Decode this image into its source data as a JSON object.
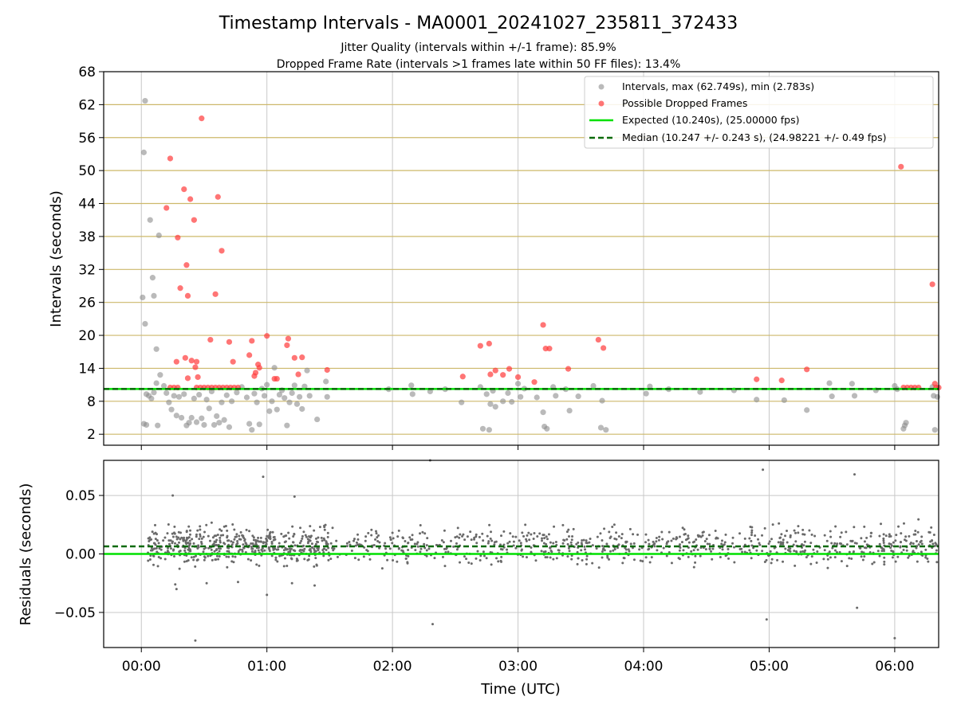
{
  "title": "Timestamp Intervals - MA0001_20241027_235811_372433",
  "subtitle_1": "Jitter Quality (intervals within +/-1 frame): 85.9%",
  "subtitle_2": "Dropped Frame Rate (intervals >1 frames late within 50 FF files): 13.4%",
  "colors": {
    "intervals": "#8c8c8c",
    "dropped": "#ff3b3b",
    "expected": "#00e000",
    "median": "#0a6a0a",
    "hgrid_top": "#cdb86a",
    "grid": "#c8c8c8",
    "residual_points": "#6a6a6a"
  },
  "chart_data": [
    {
      "type": "scatter",
      "panel": "intervals",
      "xlabel": "",
      "ylabel": "Intervals (seconds)",
      "xlim": [
        -0.3,
        6.35
      ],
      "ylim": [
        0,
        68
      ],
      "y_ticks": [
        "2",
        "8",
        "14",
        "20",
        "26",
        "32",
        "38",
        "44",
        "50",
        "56",
        "62",
        "68"
      ],
      "y_tick_values": [
        2,
        8,
        14,
        20,
        26,
        32,
        38,
        44,
        50,
        56,
        62,
        68
      ],
      "x_tick_values": [
        0,
        1,
        2,
        3,
        4,
        5,
        6
      ],
      "legend_position": "top-right",
      "legend": {
        "intervals": "Intervals, max (62.749s), min (2.783s)",
        "dropped": "Possible Dropped Frames",
        "expected": "Expected (10.240s), (25.00000 fps)",
        "median": "Median (10.247 +/- 0.243 s), (24.98221 +/- 0.49 fps)"
      },
      "expected_value": 10.24,
      "median_value": 10.247,
      "series": [
        {
          "name": "Intervals, max (62.749s), min (2.783s)",
          "points": [
            [
              0.02,
              53.3
            ],
            [
              0.03,
              62.7
            ],
            [
              0.07,
              41
            ],
            [
              0.09,
              30.5
            ],
            [
              0.1,
              27.2
            ],
            [
              0.14,
              38.2
            ],
            [
              0.01,
              26.9
            ],
            [
              0.03,
              22.1
            ],
            [
              0.12,
              17.5
            ],
            [
              0.02,
              3.9
            ],
            [
              0.04,
              3.7
            ],
            [
              0.13,
              3.6
            ],
            [
              0.04,
              9.3
            ],
            [
              0.06,
              9.0
            ],
            [
              0.08,
              8.5
            ],
            [
              0.1,
              9.6
            ],
            [
              0.12,
              11.3
            ],
            [
              0.15,
              12.8
            ],
            [
              0.18,
              10.8
            ],
            [
              0.2,
              9.5
            ],
            [
              0.22,
              7.8
            ],
            [
              0.24,
              6.5
            ],
            [
              0.26,
              9.0
            ],
            [
              0.28,
              5.4
            ],
            [
              0.3,
              8.8
            ],
            [
              0.32,
              5.0
            ],
            [
              0.34,
              9.3
            ],
            [
              0.36,
              3.6
            ],
            [
              0.38,
              4.1
            ],
            [
              0.4,
              5.0
            ],
            [
              0.42,
              8.5
            ],
            [
              0.44,
              4.2
            ],
            [
              0.46,
              9.2
            ],
            [
              0.48,
              4.9
            ],
            [
              0.5,
              3.7
            ],
            [
              0.52,
              8.3
            ],
            [
              0.54,
              6.7
            ],
            [
              0.56,
              9.8
            ],
            [
              0.58,
              3.7
            ],
            [
              0.6,
              5.3
            ],
            [
              0.62,
              4.1
            ],
            [
              0.64,
              7.8
            ],
            [
              0.66,
              4.6
            ],
            [
              0.68,
              9.1
            ],
            [
              0.7,
              3.3
            ],
            [
              0.72,
              8.0
            ],
            [
              0.76,
              9.6
            ],
            [
              0.8,
              10.6
            ],
            [
              0.84,
              8.7
            ],
            [
              0.86,
              3.9
            ],
            [
              0.88,
              2.8
            ],
            [
              0.9,
              9.4
            ],
            [
              0.92,
              7.8
            ],
            [
              0.94,
              3.8
            ],
            [
              0.96,
              10.3
            ],
            [
              0.98,
              9.0
            ],
            [
              1.0,
              11.0
            ],
            [
              1.02,
              6.2
            ],
            [
              1.04,
              8.0
            ],
            [
              1.06,
              14.1
            ],
            [
              1.08,
              6.5
            ],
            [
              1.1,
              9.2
            ],
            [
              1.12,
              10.0
            ],
            [
              1.14,
              8.6
            ],
            [
              1.16,
              3.6
            ],
            [
              1.18,
              7.8
            ],
            [
              1.2,
              9.5
            ],
            [
              1.22,
              10.9
            ],
            [
              1.24,
              7.5
            ],
            [
              1.26,
              8.8
            ],
            [
              1.28,
              6.6
            ],
            [
              1.3,
              10.7
            ],
            [
              1.32,
              13.6
            ],
            [
              1.34,
              9.0
            ],
            [
              1.4,
              4.7
            ],
            [
              1.47,
              11.6
            ],
            [
              1.48,
              8.8
            ],
            [
              1.97,
              10.2
            ],
            [
              2.15,
              10.9
            ],
            [
              2.16,
              9.3
            ],
            [
              2.3,
              9.8
            ],
            [
              2.42,
              10.2
            ],
            [
              2.55,
              7.8
            ],
            [
              2.7,
              10.6
            ],
            [
              2.72,
              3.0
            ],
            [
              2.75,
              9.3
            ],
            [
              2.77,
              2.8
            ],
            [
              2.78,
              7.5
            ],
            [
              2.8,
              9.9
            ],
            [
              2.82,
              7.0
            ],
            [
              2.88,
              8.0
            ],
            [
              2.92,
              9.5
            ],
            [
              2.95,
              7.9
            ],
            [
              3.0,
              11.2
            ],
            [
              3.02,
              8.8
            ],
            [
              3.05,
              10.3
            ],
            [
              3.15,
              8.7
            ],
            [
              3.2,
              6.0
            ],
            [
              3.21,
              3.4
            ],
            [
              3.23,
              3.0
            ],
            [
              3.28,
              10.6
            ],
            [
              3.3,
              9.0
            ],
            [
              3.38,
              10.2
            ],
            [
              3.41,
              6.3
            ],
            [
              3.48,
              8.9
            ],
            [
              3.6,
              10.8
            ],
            [
              3.66,
              3.2
            ],
            [
              3.67,
              8.1
            ],
            [
              3.7,
              2.8
            ],
            [
              4.02,
              9.4
            ],
            [
              4.05,
              10.7
            ],
            [
              4.2,
              10.2
            ],
            [
              4.45,
              9.7
            ],
            [
              4.72,
              10.0
            ],
            [
              4.9,
              8.3
            ],
            [
              5.12,
              8.2
            ],
            [
              5.3,
              6.4
            ],
            [
              5.48,
              11.3
            ],
            [
              5.5,
              8.9
            ],
            [
              5.66,
              11.2
            ],
            [
              5.68,
              9.0
            ],
            [
              5.85,
              10.0
            ],
            [
              6.0,
              10.8
            ],
            [
              6.02,
              10.2
            ],
            [
              6.07,
              3.0
            ],
            [
              6.08,
              3.6
            ],
            [
              6.09,
              4.1
            ],
            [
              6.3,
              10.6
            ],
            [
              6.31,
              9.0
            ],
            [
              6.32,
              2.8
            ],
            [
              6.34,
              8.8
            ]
          ]
        },
        {
          "name": "Possible Dropped Frames",
          "points": [
            [
              0.2,
              43.2
            ],
            [
              0.23,
              52.2
            ],
            [
              0.29,
              37.8
            ],
            [
              0.31,
              28.6
            ],
            [
              0.34,
              46.6
            ],
            [
              0.36,
              32.8
            ],
            [
              0.37,
              27.2
            ],
            [
              0.39,
              44.8
            ],
            [
              0.42,
              41.0
            ],
            [
              0.48,
              59.5
            ],
            [
              0.55,
              19.2
            ],
            [
              0.59,
              27.5
            ],
            [
              0.61,
              45.2
            ],
            [
              0.64,
              35.4
            ],
            [
              0.7,
              18.8
            ],
            [
              0.73,
              15.2
            ],
            [
              0.28,
              15.2
            ],
            [
              0.35,
              15.9
            ],
            [
              0.37,
              12.2
            ],
            [
              0.4,
              15.4
            ],
            [
              0.43,
              14.2
            ],
            [
              0.44,
              15.2
            ],
            [
              0.45,
              12.4
            ],
            [
              0.86,
              16.4
            ],
            [
              0.88,
              19.0
            ],
            [
              0.9,
              12.6
            ],
            [
              0.91,
              13.2
            ],
            [
              0.93,
              14.7
            ],
            [
              0.94,
              14.1
            ],
            [
              1.0,
              19.9
            ],
            [
              1.06,
              12.1
            ],
            [
              1.08,
              12.1
            ],
            [
              1.16,
              18.2
            ],
            [
              1.17,
              19.4
            ],
            [
              1.22,
              15.9
            ],
            [
              1.25,
              12.9
            ],
            [
              1.28,
              16.0
            ],
            [
              1.48,
              13.7
            ],
            [
              2.56,
              12.5
            ],
            [
              2.7,
              18.1
            ],
            [
              2.77,
              18.5
            ],
            [
              2.78,
              12.9
            ],
            [
              2.82,
              13.6
            ],
            [
              2.88,
              12.8
            ],
            [
              2.93,
              13.9
            ],
            [
              3.0,
              12.4
            ],
            [
              3.13,
              11.5
            ],
            [
              3.2,
              21.9
            ],
            [
              3.22,
              17.6
            ],
            [
              3.25,
              17.6
            ],
            [
              3.4,
              13.9
            ],
            [
              3.64,
              19.2
            ],
            [
              3.68,
              17.7
            ],
            [
              4.9,
              12.0
            ],
            [
              5.1,
              11.8
            ],
            [
              5.3,
              13.8
            ],
            [
              6.05,
              50.7
            ],
            [
              6.3,
              29.3
            ],
            [
              6.32,
              11.2
            ],
            [
              0.23,
              10.5
            ],
            [
              0.26,
              10.5
            ],
            [
              0.29,
              10.5
            ],
            [
              0.44,
              10.5
            ],
            [
              0.47,
              10.5
            ],
            [
              0.5,
              10.5
            ],
            [
              0.53,
              10.5
            ],
            [
              0.56,
              10.5
            ],
            [
              0.59,
              10.5
            ],
            [
              0.62,
              10.5
            ],
            [
              0.65,
              10.5
            ],
            [
              0.68,
              10.5
            ],
            [
              0.71,
              10.5
            ],
            [
              0.74,
              10.5
            ],
            [
              0.77,
              10.5
            ],
            [
              6.07,
              10.5
            ],
            [
              6.1,
              10.5
            ],
            [
              6.13,
              10.5
            ],
            [
              6.16,
              10.5
            ],
            [
              6.19,
              10.5
            ],
            [
              6.33,
              10.5
            ],
            [
              6.35,
              10.5
            ]
          ]
        }
      ]
    },
    {
      "type": "scatter",
      "panel": "residuals",
      "xlabel": "Time (UTC)",
      "ylabel": "Residuals (seconds)",
      "xlim": [
        -0.3,
        6.35
      ],
      "ylim": [
        -0.08,
        0.08
      ],
      "x_ticks": [
        "00:00",
        "01:00",
        "02:00",
        "03:00",
        "04:00",
        "05:00",
        "06:00"
      ],
      "x_tick_values": [
        0,
        1,
        2,
        3,
        4,
        5,
        6
      ],
      "y_ticks": [
        "−0.05",
        "0.00",
        "0.05"
      ],
      "y_tick_values": [
        -0.05,
        0.0,
        0.05
      ],
      "expected_value": 0.0,
      "median_value": 0.0065,
      "point_count": 1300,
      "center": 0.007,
      "spread": 0.011,
      "outliers": [
        [
          0.25,
          0.05
        ],
        [
          0.43,
          -0.074
        ],
        [
          0.97,
          0.066
        ],
        [
          1.0,
          -0.035
        ],
        [
          1.22,
          0.049
        ],
        [
          2.3,
          0.08
        ],
        [
          2.32,
          -0.06
        ],
        [
          4.95,
          0.072
        ],
        [
          4.98,
          -0.056
        ],
        [
          5.68,
          0.068
        ],
        [
          5.7,
          -0.046
        ],
        [
          6.0,
          -0.072
        ],
        [
          0.27,
          -0.026
        ],
        [
          0.28,
          -0.03
        ],
        [
          0.52,
          -0.025
        ],
        [
          0.77,
          -0.024
        ],
        [
          1.2,
          -0.025
        ],
        [
          1.38,
          -0.027
        ]
      ]
    }
  ]
}
